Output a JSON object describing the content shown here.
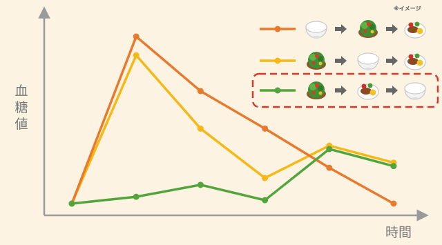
{
  "note": "※イメージ",
  "chart_data": {
    "type": "line",
    "title": "",
    "ylabel": "血糖値",
    "xlabel": "時間",
    "x": [
      0,
      1,
      2,
      3,
      4,
      5
    ],
    "ylim": [
      0,
      100
    ],
    "grid": false,
    "legend": "top-right",
    "series": [
      {
        "color": "#e87a2e",
        "values": [
          0,
          98,
          66,
          44,
          21,
          0
        ],
        "legend_items": [
          "rice-bowl",
          "arrow",
          "salad",
          "arrow",
          "main-dish"
        ]
      },
      {
        "color": "#f4b917",
        "values": [
          0,
          87,
          44,
          15,
          34,
          24
        ],
        "legend_items": [
          "salad",
          "arrow",
          "rice-bowl",
          "arrow",
          "main-dish"
        ]
      },
      {
        "color": "#52a53a",
        "values": [
          0,
          4,
          11,
          2,
          32,
          22
        ],
        "highlighted": true,
        "legend_items": [
          "salad",
          "arrow",
          "main-dish",
          "arrow",
          "rice-bowl"
        ]
      }
    ]
  }
}
